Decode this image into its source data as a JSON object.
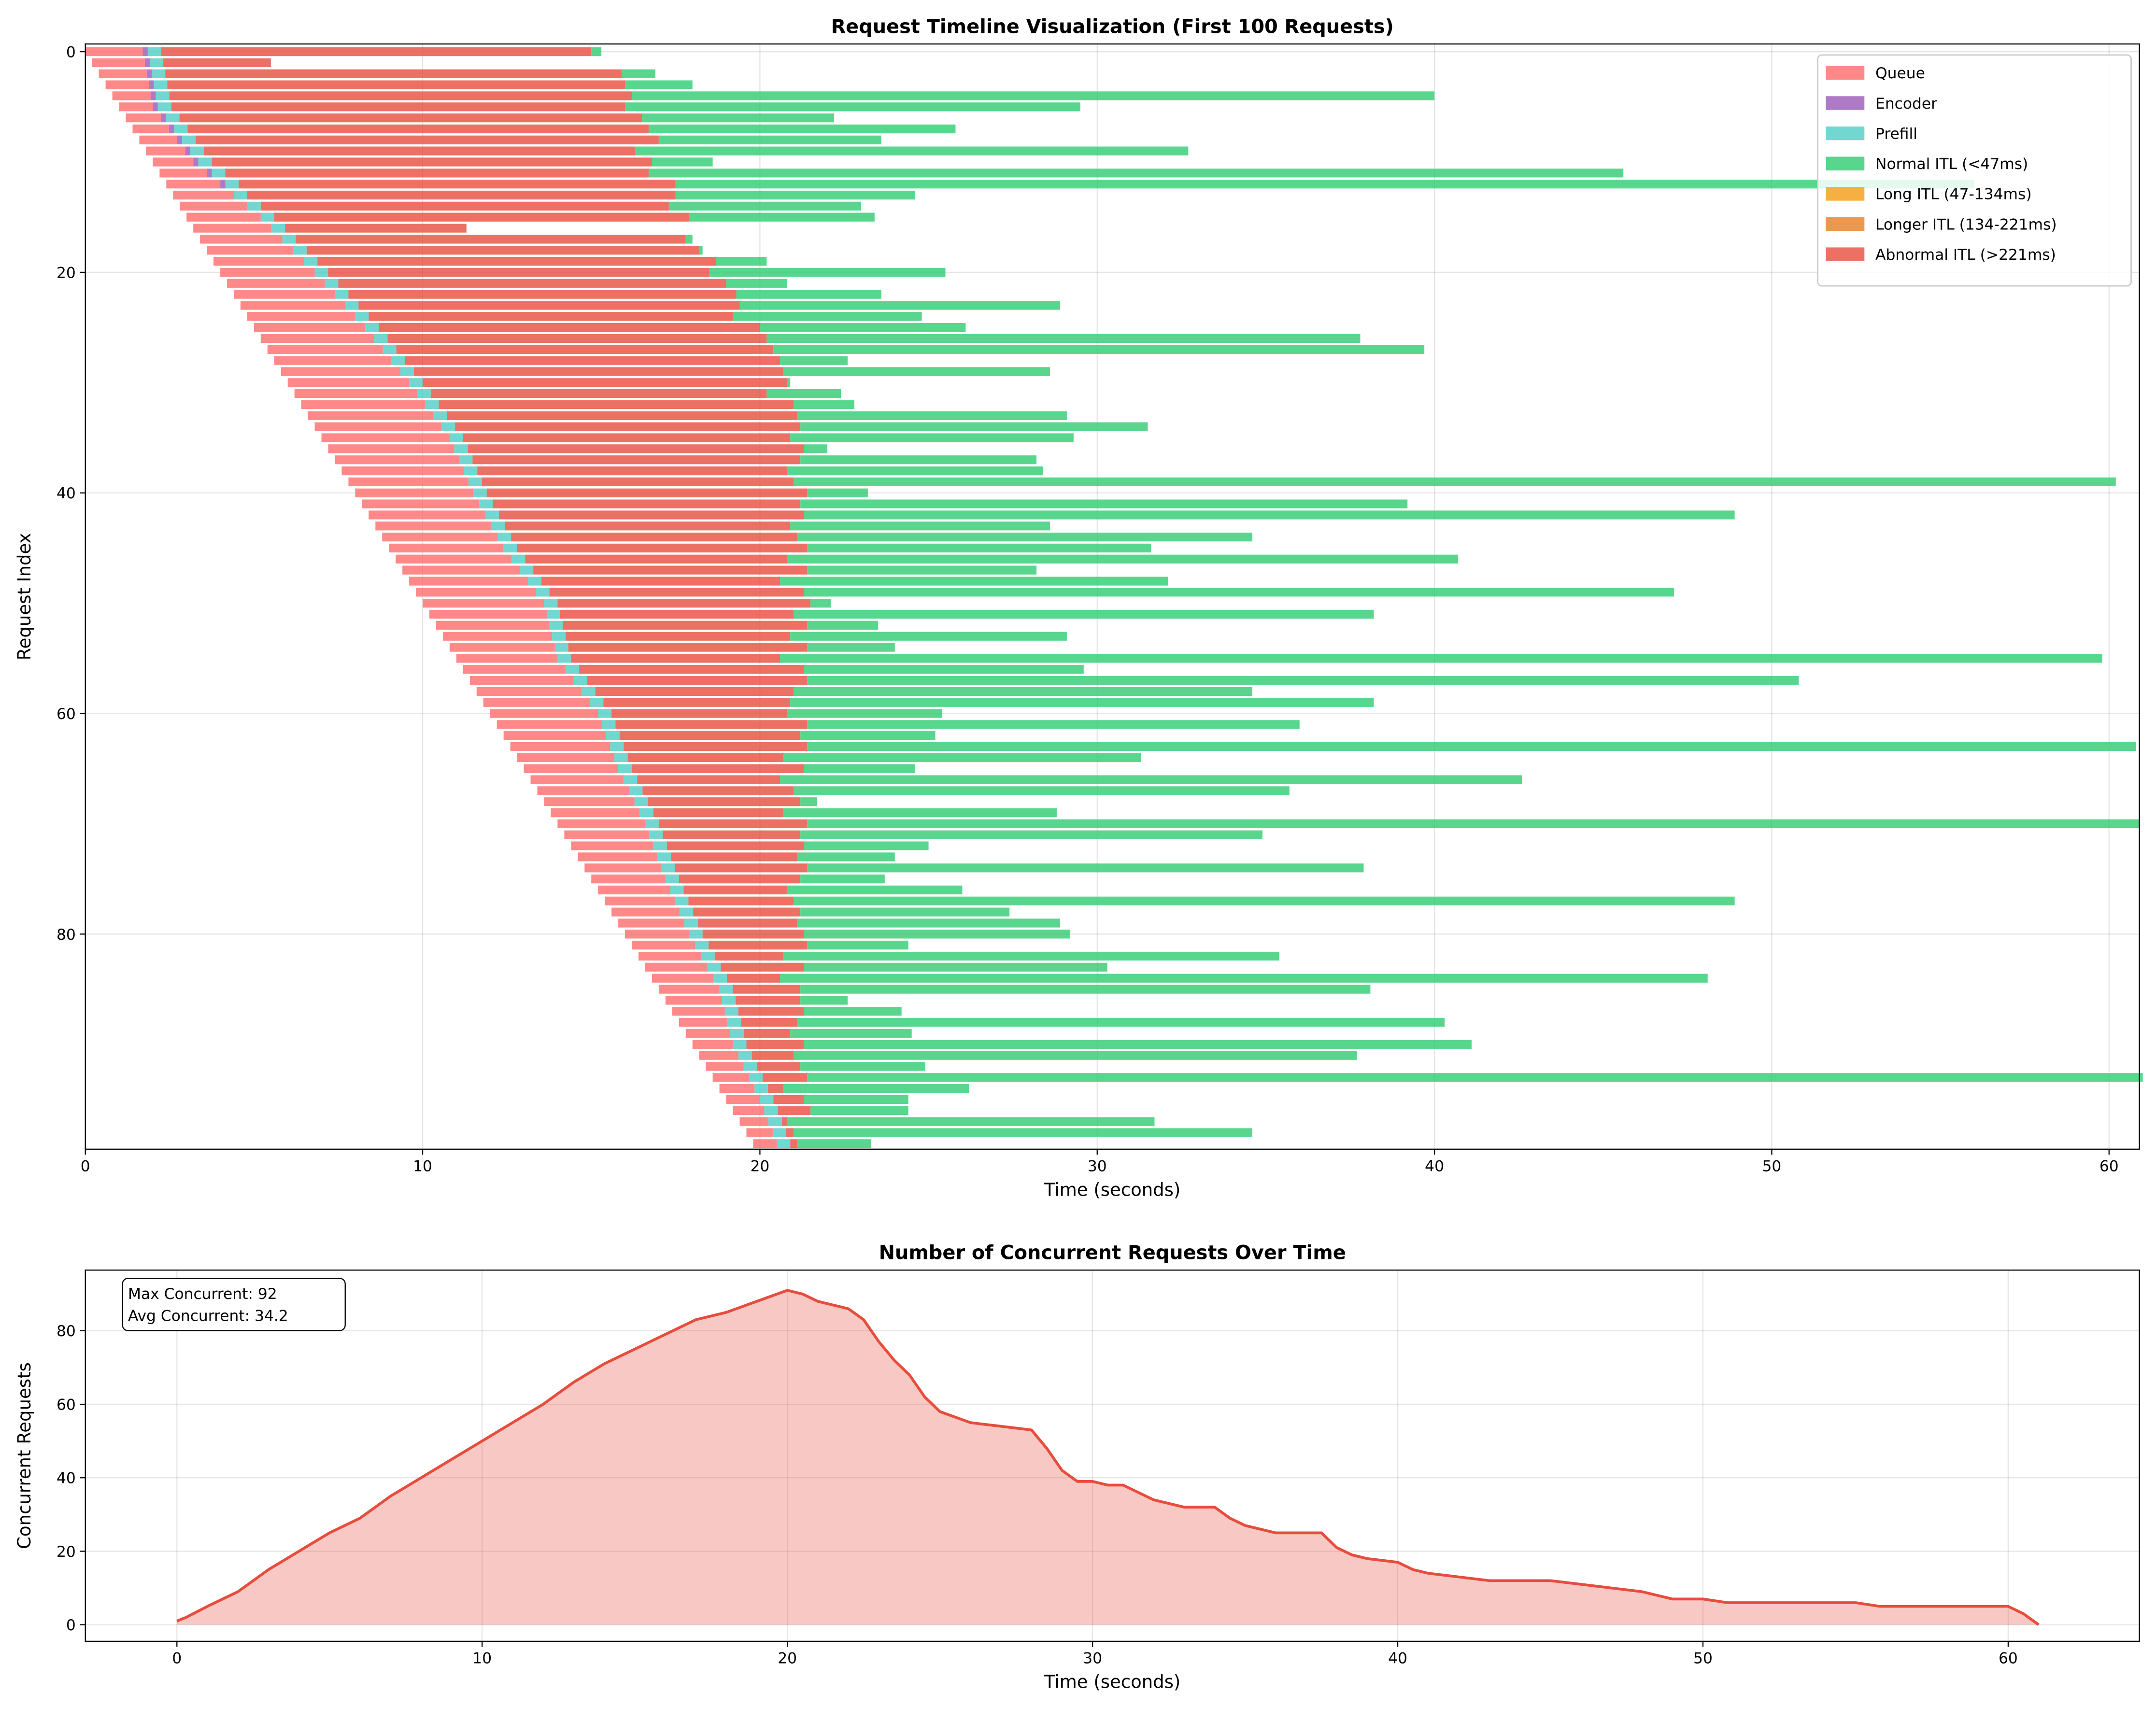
{
  "chart_data": [
    {
      "type": "gantt",
      "title": "Request Timeline Visualization (First 100 Requests)",
      "xlabel": "Time (seconds)",
      "ylabel": "Request Index",
      "xlim": [
        0,
        60.9
      ],
      "xticks": [
        0,
        10,
        20,
        30,
        40,
        50,
        60
      ],
      "ylim": [
        99.5,
        -0.7
      ],
      "yticks": [
        0,
        20,
        40,
        60,
        80
      ],
      "grid": true,
      "legend": "upper right",
      "start": [
        0,
        0.2,
        0.4,
        0.6,
        0.8,
        1,
        1.2,
        1.4,
        1.6,
        1.8,
        2,
        2.2,
        2.4,
        2.6,
        2.8,
        3,
        3.2,
        3.4,
        3.6,
        3.8,
        4,
        4.2,
        4.4,
        4.6,
        4.8,
        5,
        5.2,
        5.4,
        5.6,
        5.8,
        6,
        6.2,
        6.4,
        6.6,
        6.8,
        7,
        7.2,
        7.4,
        7.6,
        7.8,
        8,
        8.2,
        8.4,
        8.6,
        8.8,
        9,
        9.2,
        9.4,
        9.6,
        9.8,
        10,
        10.2,
        10.4,
        10.6,
        10.8,
        11,
        11.2,
        11.4,
        11.6,
        11.8,
        12,
        12.2,
        12.4,
        12.6,
        12.8,
        13,
        13.2,
        13.4,
        13.6,
        13.8,
        14,
        14.2,
        14.4,
        14.6,
        14.8,
        15,
        15.2,
        15.4,
        15.6,
        15.8,
        16,
        16.2,
        16.4,
        16.6,
        16.8,
        17,
        17.2,
        17.4,
        17.6,
        17.8,
        18,
        18.2,
        18.4,
        18.6,
        18.8,
        19,
        19.2,
        19.4,
        19.6,
        19.8
      ],
      "series": [
        {
          "name": "Queue",
          "color": "#ff6b6b",
          "values": [
            1.7,
            1.56,
            1.42,
            1.28,
            1.14,
            1.0,
            1.04,
            1.08,
            1.12,
            1.16,
            1.2,
            1.4,
            1.6,
            1.8,
            2.0,
            2.2,
            2.32,
            2.44,
            2.56,
            2.68,
            2.8,
            2.9,
            3.0,
            3.1,
            3.2,
            3.3,
            3.36,
            3.42,
            3.48,
            3.54,
            3.6,
            3.64,
            3.68,
            3.72,
            3.76,
            3.8,
            3.74,
            3.68,
            3.62,
            3.56,
            3.5,
            3.48,
            3.46,
            3.44,
            3.42,
            3.4,
            3.44,
            3.48,
            3.52,
            3.56,
            3.6,
            3.48,
            3.36,
            3.24,
            3.12,
            3.0,
            3.04,
            3.08,
            3.12,
            3.16,
            3.2,
            3.12,
            3.04,
            2.96,
            2.88,
            2.8,
            2.76,
            2.72,
            2.68,
            2.64,
            2.6,
            2.52,
            2.44,
            2.36,
            2.28,
            2.2,
            2.14,
            2.08,
            2.02,
            1.96,
            1.9,
            1.88,
            1.86,
            1.84,
            1.82,
            1.8,
            1.68,
            1.56,
            1.44,
            1.32,
            1.2,
            1.16,
            1.12,
            1.08,
            1.04,
            1.0,
            0.93,
            0.85,
            0.78,
            0.7
          ]
        },
        {
          "name": "Encoder",
          "color": "#9b59b6",
          "values": [
            0.15,
            0.15,
            0.15,
            0.15,
            0.15,
            0.15,
            0.15,
            0.15,
            0.15,
            0.15,
            0.15,
            0.15,
            0.15,
            0,
            0,
            0,
            0,
            0,
            0,
            0,
            0,
            0,
            0,
            0,
            0,
            0,
            0,
            0,
            0,
            0,
            0,
            0,
            0,
            0,
            0,
            0,
            0,
            0,
            0,
            0,
            0,
            0,
            0,
            0,
            0,
            0,
            0,
            0,
            0,
            0,
            0,
            0,
            0,
            0,
            0,
            0,
            0,
            0,
            0,
            0,
            0,
            0,
            0,
            0,
            0,
            0,
            0,
            0,
            0,
            0,
            0,
            0,
            0,
            0,
            0,
            0,
            0,
            0,
            0,
            0,
            0,
            0,
            0,
            0,
            0,
            0,
            0,
            0,
            0,
            0,
            0,
            0,
            0,
            0,
            0,
            0,
            0,
            0,
            0,
            0
          ]
        },
        {
          "name": "Prefill",
          "color": "#4ecdc4",
          "values": [
            0.4,
            0.4,
            0.4,
            0.4,
            0.4,
            0.4,
            0.4,
            0.4,
            0.4,
            0.4,
            0.4,
            0.4,
            0.4,
            0.4,
            0.4,
            0.4,
            0.4,
            0.4,
            0.4,
            0.4,
            0.4,
            0.4,
            0.4,
            0.4,
            0.4,
            0.4,
            0.4,
            0.4,
            0.4,
            0.4,
            0.4,
            0.4,
            0.4,
            0.4,
            0.4,
            0.4,
            0.4,
            0.4,
            0.4,
            0.4,
            0.4,
            0.4,
            0.4,
            0.4,
            0.4,
            0.4,
            0.4,
            0.4,
            0.4,
            0.4,
            0.4,
            0.4,
            0.4,
            0.4,
            0.4,
            0.4,
            0.4,
            0.4,
            0.4,
            0.4,
            0.4,
            0.4,
            0.4,
            0.4,
            0.4,
            0.4,
            0.4,
            0.4,
            0.4,
            0.4,
            0.4,
            0.4,
            0.4,
            0.4,
            0.4,
            0.4,
            0.4,
            0.4,
            0.4,
            0.4,
            0.4,
            0.4,
            0.4,
            0.4,
            0.4,
            0.4,
            0.4,
            0.4,
            0.4,
            0.4,
            0.4,
            0.4,
            0.4,
            0.4,
            0.4,
            0.4,
            0.4,
            0.4,
            0.4,
            0.4
          ]
        },
        {
          "name": "Normal ITL (<47ms)",
          "color": "#2ecc71",
          "values": [
            0.3,
            0,
            1.0,
            2.0,
            23.8,
            13.5,
            5.7,
            9.1,
            6.6,
            16.4,
            1.8,
            28.9,
            38.5,
            7.1,
            5.7,
            5.5,
            0,
            0.2,
            0.1,
            1.5,
            7.0,
            1.8,
            4.3,
            9.5,
            5.6,
            6.1,
            17.6,
            19.3,
            2.0,
            7.9,
            0.1,
            2.2,
            1.8,
            8.0,
            10.3,
            8.4,
            0.7,
            7.0,
            7.6,
            39.2,
            1.8,
            18.0,
            27.6,
            7.7,
            13.5,
            10.2,
            19.9,
            6.8,
            11.5,
            25.8,
            0.6,
            17.2,
            2.1,
            8.2,
            2.6,
            39.2,
            8.3,
            29.4,
            13.6,
            17.3,
            4.6,
            14.6,
            4.0,
            39.4,
            10.6,
            3.3,
            22.0,
            14.7,
            0.5,
            8.1,
            39.5,
            13.7,
            3.7,
            2.9,
            16.5,
            2.5,
            5.2,
            27.9,
            6.2,
            7.8,
            7.9,
            3.0,
            14.7,
            9.0,
            27.5,
            16.9,
            1.4,
            2.9,
            19.2,
            3.6,
            19.8,
            16.7,
            3.7,
            39.6,
            5.5,
            3.1,
            2.9,
            10.9,
            13.6,
            2.2
          ]
        },
        {
          "name": "Long ITL (47-134ms)",
          "color": "#f39c12"
        },
        {
          "name": "Longer ITL (134-221ms)",
          "color": "#e67e22"
        },
        {
          "name": "Abnormal ITL (>221ms)",
          "color": "#e74c3c",
          "values": [
            12.75,
            3.19,
            13.53,
            13.57,
            13.71,
            13.45,
            13.71,
            13.67,
            13.73,
            12.79,
            13.05,
            12.55,
            12.95,
            12.7,
            12.1,
            12.3,
            5.38,
            11.56,
            11.64,
            11.82,
            11.3,
            11.5,
            11.5,
            11.3,
            10.8,
            11.3,
            11.24,
            11.18,
            11.12,
            10.96,
            10.8,
            9.96,
            10.52,
            10.38,
            10.24,
            9.7,
            9.96,
            9.72,
            9.18,
            9.24,
            9.5,
            9.12,
            9.04,
            8.46,
            8.48,
            8.6,
            7.76,
            8.12,
            7.08,
            7.54,
            7.5,
            6.92,
            7.24,
            6.66,
            7.08,
            6.2,
            6.66,
            6.52,
            5.88,
            5.54,
            5.2,
            5.68,
            5.36,
            5.44,
            4.62,
            5.1,
            4.24,
            4.48,
            4.52,
            3.86,
            4.4,
            4.08,
            4.06,
            3.74,
            3.92,
            3.6,
            3.06,
            3.12,
            3.18,
            2.94,
            3.0,
            2.92,
            2.04,
            2.46,
            1.58,
            2.0,
            1.92,
            1.94,
            1.66,
            1.38,
            1.7,
            1.24,
            1.28,
            1.32,
            0.46,
            0.9,
            0.97,
            0.15,
            0.22,
            0.2
          ]
        }
      ]
    },
    {
      "type": "area",
      "title": "Number of Concurrent Requests Over Time",
      "xlabel": "Time (seconds)",
      "ylabel": "Concurrent Requests",
      "xlim": [
        -3,
        64.3
      ],
      "xticks": [
        0,
        10,
        20,
        30,
        40,
        50,
        60
      ],
      "ylim": [
        -4.5,
        96.5
      ],
      "yticks": [
        0,
        20,
        40,
        60,
        80
      ],
      "grid": true,
      "color": "#e74c3c",
      "annotations": [
        "Max Concurrent: 92",
        "Avg Concurrent: 34.2"
      ],
      "x": [
        0,
        0.3,
        1,
        2,
        3,
        4,
        5,
        6,
        7,
        8,
        9,
        10,
        11,
        12,
        13,
        14,
        15,
        16,
        17,
        18,
        19,
        20,
        20.5,
        21,
        22,
        22.5,
        23,
        23.5,
        24,
        24.5,
        25,
        26,
        27,
        28,
        28.5,
        29,
        29.5,
        30,
        30.5,
        31,
        31.5,
        32,
        32.5,
        33,
        34,
        34.5,
        35,
        36,
        37,
        37.5,
        38,
        38.5,
        39,
        40,
        40.5,
        41,
        42,
        43,
        44,
        45,
        46,
        47,
        48,
        49,
        50,
        50.8,
        52,
        55,
        55.8,
        58,
        60,
        60.5,
        61
      ],
      "values": [
        1,
        2,
        5,
        9,
        15,
        20,
        25,
        29,
        35,
        40,
        45,
        50,
        55,
        60,
        66,
        71,
        75,
        79,
        83,
        85,
        88,
        91,
        90,
        88,
        86,
        83,
        77,
        72,
        68,
        62,
        58,
        55,
        54,
        53,
        48,
        42,
        39,
        39,
        38,
        38,
        36,
        34,
        33,
        32,
        32,
        29,
        27,
        25,
        25,
        25,
        21,
        19,
        18,
        17,
        15,
        14,
        13,
        12,
        12,
        12,
        11,
        10,
        9,
        7,
        7,
        6,
        6,
        6,
        5,
        5,
        5,
        3,
        0
      ]
    }
  ]
}
